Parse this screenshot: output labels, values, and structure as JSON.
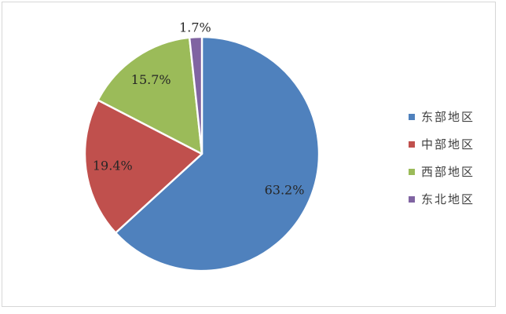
{
  "chart_data": {
    "type": "pie",
    "title": "",
    "start_angle_deg": 0,
    "direction": "clockwise",
    "legend_position": "right",
    "series": [
      {
        "name": "东部地区",
        "value": 63.2,
        "label": "63.2%",
        "color": "#4F81BD"
      },
      {
        "name": "中部地区",
        "value": 19.4,
        "label": "19.4%",
        "color": "#C0504D"
      },
      {
        "name": "西部地区",
        "value": 15.7,
        "label": "15.7%",
        "color": "#9BBB59"
      },
      {
        "name": "东北地区",
        "value": 1.7,
        "label": "1.7%",
        "color": "#8064A2"
      }
    ],
    "slice_separator_color": "#FFFFFF",
    "data_label_color": "#262626",
    "legend_text_color": "#404040",
    "frame_border_color": "#D6D6D6",
    "background_color": "#FFFFFF"
  }
}
